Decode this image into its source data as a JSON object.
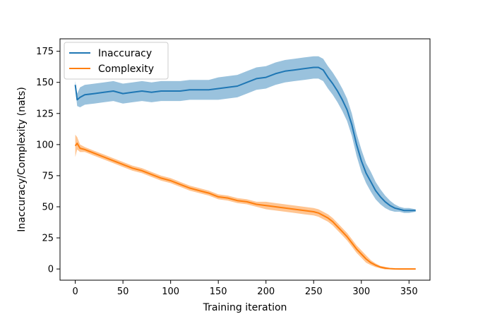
{
  "chart_data": {
    "type": "line",
    "title": "",
    "xlabel": "Training iteration",
    "ylabel": "Inaccuracy/Complexity (nats)",
    "xlim": [
      -16,
      372
    ],
    "ylim": [
      -9,
      185
    ],
    "xticks": [
      0,
      50,
      100,
      150,
      200,
      250,
      300,
      350
    ],
    "yticks": [
      0,
      25,
      50,
      75,
      100,
      125,
      150,
      175
    ],
    "grid": false,
    "legend_position": "top-left",
    "series": [
      {
        "name": "Inaccuracy",
        "color": "#1f77b4",
        "band_color": "#1f77b4",
        "x": [
          0,
          2,
          5,
          10,
          20,
          30,
          40,
          50,
          60,
          70,
          80,
          90,
          100,
          110,
          120,
          130,
          140,
          150,
          160,
          170,
          180,
          190,
          200,
          210,
          220,
          230,
          240,
          250,
          255,
          260,
          265,
          270,
          275,
          280,
          285,
          290,
          295,
          300,
          305,
          310,
          315,
          320,
          325,
          330,
          335,
          340,
          345,
          350,
          357
        ],
        "values": [
          148,
          136,
          138,
          140,
          141,
          142,
          143,
          141,
          142,
          143,
          142,
          143,
          143,
          143,
          144,
          144,
          144,
          145,
          146,
          147,
          150,
          153,
          154,
          157,
          159,
          160,
          161,
          162,
          162,
          160,
          154,
          149,
          143,
          136,
          128,
          116,
          100,
          87,
          77,
          70,
          63,
          58,
          54,
          51,
          49,
          48,
          47,
          47,
          47
        ],
        "band": [
          3,
          5,
          8,
          8,
          8,
          8,
          8,
          8,
          8,
          8,
          8,
          8,
          8,
          8,
          8,
          8,
          8,
          9,
          9,
          9,
          9,
          9,
          9,
          9,
          9,
          9,
          9,
          9,
          9,
          9,
          9,
          9,
          9,
          9,
          9,
          9,
          9,
          9,
          8,
          8,
          7,
          6,
          5,
          4,
          3,
          2,
          2,
          2,
          1
        ]
      },
      {
        "name": "Complexity",
        "color": "#ff7f0e",
        "band_color": "#ff7f0e",
        "x": [
          0,
          2,
          5,
          10,
          20,
          30,
          40,
          50,
          60,
          70,
          80,
          90,
          100,
          110,
          120,
          130,
          140,
          150,
          160,
          170,
          180,
          190,
          200,
          210,
          220,
          230,
          240,
          250,
          255,
          260,
          265,
          270,
          275,
          280,
          285,
          290,
          295,
          300,
          305,
          310,
          315,
          320,
          325,
          330,
          335,
          340,
          345,
          350,
          357
        ],
        "values": [
          99,
          101,
          97,
          96,
          93,
          90,
          87,
          84,
          81,
          79,
          76,
          73,
          71,
          68,
          65,
          63,
          61,
          58,
          57,
          55,
          54,
          52,
          51,
          50,
          49,
          48,
          47,
          46,
          45,
          43,
          41,
          38,
          34,
          30,
          26,
          21,
          16,
          12,
          8,
          5,
          3,
          1.5,
          0.7,
          0.3,
          0.1,
          0,
          0,
          0,
          0
        ],
        "band": [
          9,
          5,
          3,
          2,
          2,
          2,
          2,
          2,
          2,
          2,
          2,
          2,
          2,
          2,
          2,
          2,
          2,
          2,
          2,
          2,
          2,
          2,
          3,
          3,
          3,
          3,
          3,
          3,
          3,
          3,
          3,
          3,
          3,
          3,
          3,
          3,
          3,
          3,
          3,
          2,
          1.5,
          1,
          1,
          0.5,
          0.5,
          0.5,
          0.5,
          0.5,
          0.5
        ]
      }
    ]
  }
}
